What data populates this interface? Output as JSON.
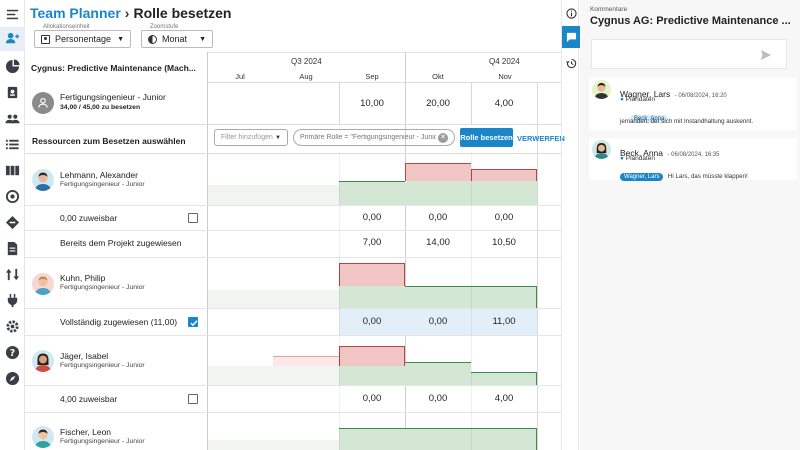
{
  "header": {
    "app_title": "Team Planner",
    "page_title": "Rolle besetzen",
    "allocation": {
      "label": "Allokationseinheit",
      "value": "Personentage"
    },
    "zoom": {
      "label": "Zoomstufe",
      "value": "Monat"
    }
  },
  "timeline": {
    "quarters": [
      "Q3 2024",
      "Q4 2024"
    ],
    "months": [
      "Jul",
      "Aug",
      "Sep",
      "Okt",
      "Nov"
    ]
  },
  "project": {
    "name": "Cygnus: Predictive Maintenance (Mach...",
    "role": "Fertigungsingenieur - Junior",
    "summary": "34,00 / 45,00 zu besetzen",
    "values": [
      "10,00",
      "20,00",
      "4,00"
    ]
  },
  "resources_section": {
    "title": "Ressourcen zum Besetzen auswählen",
    "filter_placeholder": "Filter hinzufügen",
    "primary_role_chip": "Primäre Rolle = \"Fertigungsingenieur - Junior\"",
    "assign_button": "Rolle besetzen",
    "discard_button": "VERWERFEN"
  },
  "resources": [
    {
      "name": "Lehmann, Alexander",
      "role": "Fertigungsingenieur - Junior",
      "status": "0,00 zuweisbar",
      "checked": false,
      "status_values": [
        "0,00",
        "0,00",
        "0,00"
      ],
      "extra_label": "Bereits dem Projekt zugewiesen",
      "extra_values": [
        "7,00",
        "14,00",
        "10,50"
      ]
    },
    {
      "name": "Kuhn, Philip",
      "role": "Fertigungsingenieur - Junior",
      "status": "Vollständig zugewiesen (11,00)",
      "checked": true,
      "status_values": [
        "0,00",
        "0,00",
        "11,00"
      ]
    },
    {
      "name": "Jäger, Isabel",
      "role": "Fertigungsingenieur - Junior",
      "status": "4,00 zuweisbar",
      "checked": false,
      "status_values": [
        "0,00",
        "0,00",
        "4,00"
      ]
    },
    {
      "name": "Fischer, Leon",
      "role": "Fertigungsingenieur - Junior"
    }
  ],
  "comments": {
    "header_label": "Kommentare",
    "title": "Cygnus AG: Predictive Maintenance ...",
    "items": [
      {
        "author": "Wagner, Lars",
        "date": "- 06/08/2024, 16:20",
        "status": "Plandaten",
        "mention": "Beck, Anna",
        "text": "jemanden, der sich mit Instandhaltung auskennt."
      },
      {
        "author": "Beck, Anna",
        "date": "- 06/08/2024, 16:35",
        "status": "Plandaten",
        "mention": "Wagner, Lars",
        "text": "Hi Lars, das müsste klappen!"
      }
    ]
  },
  "colors": {
    "accent": "#1a86c8",
    "over": "#f2c5c5",
    "ok": "#d4e6d4"
  }
}
